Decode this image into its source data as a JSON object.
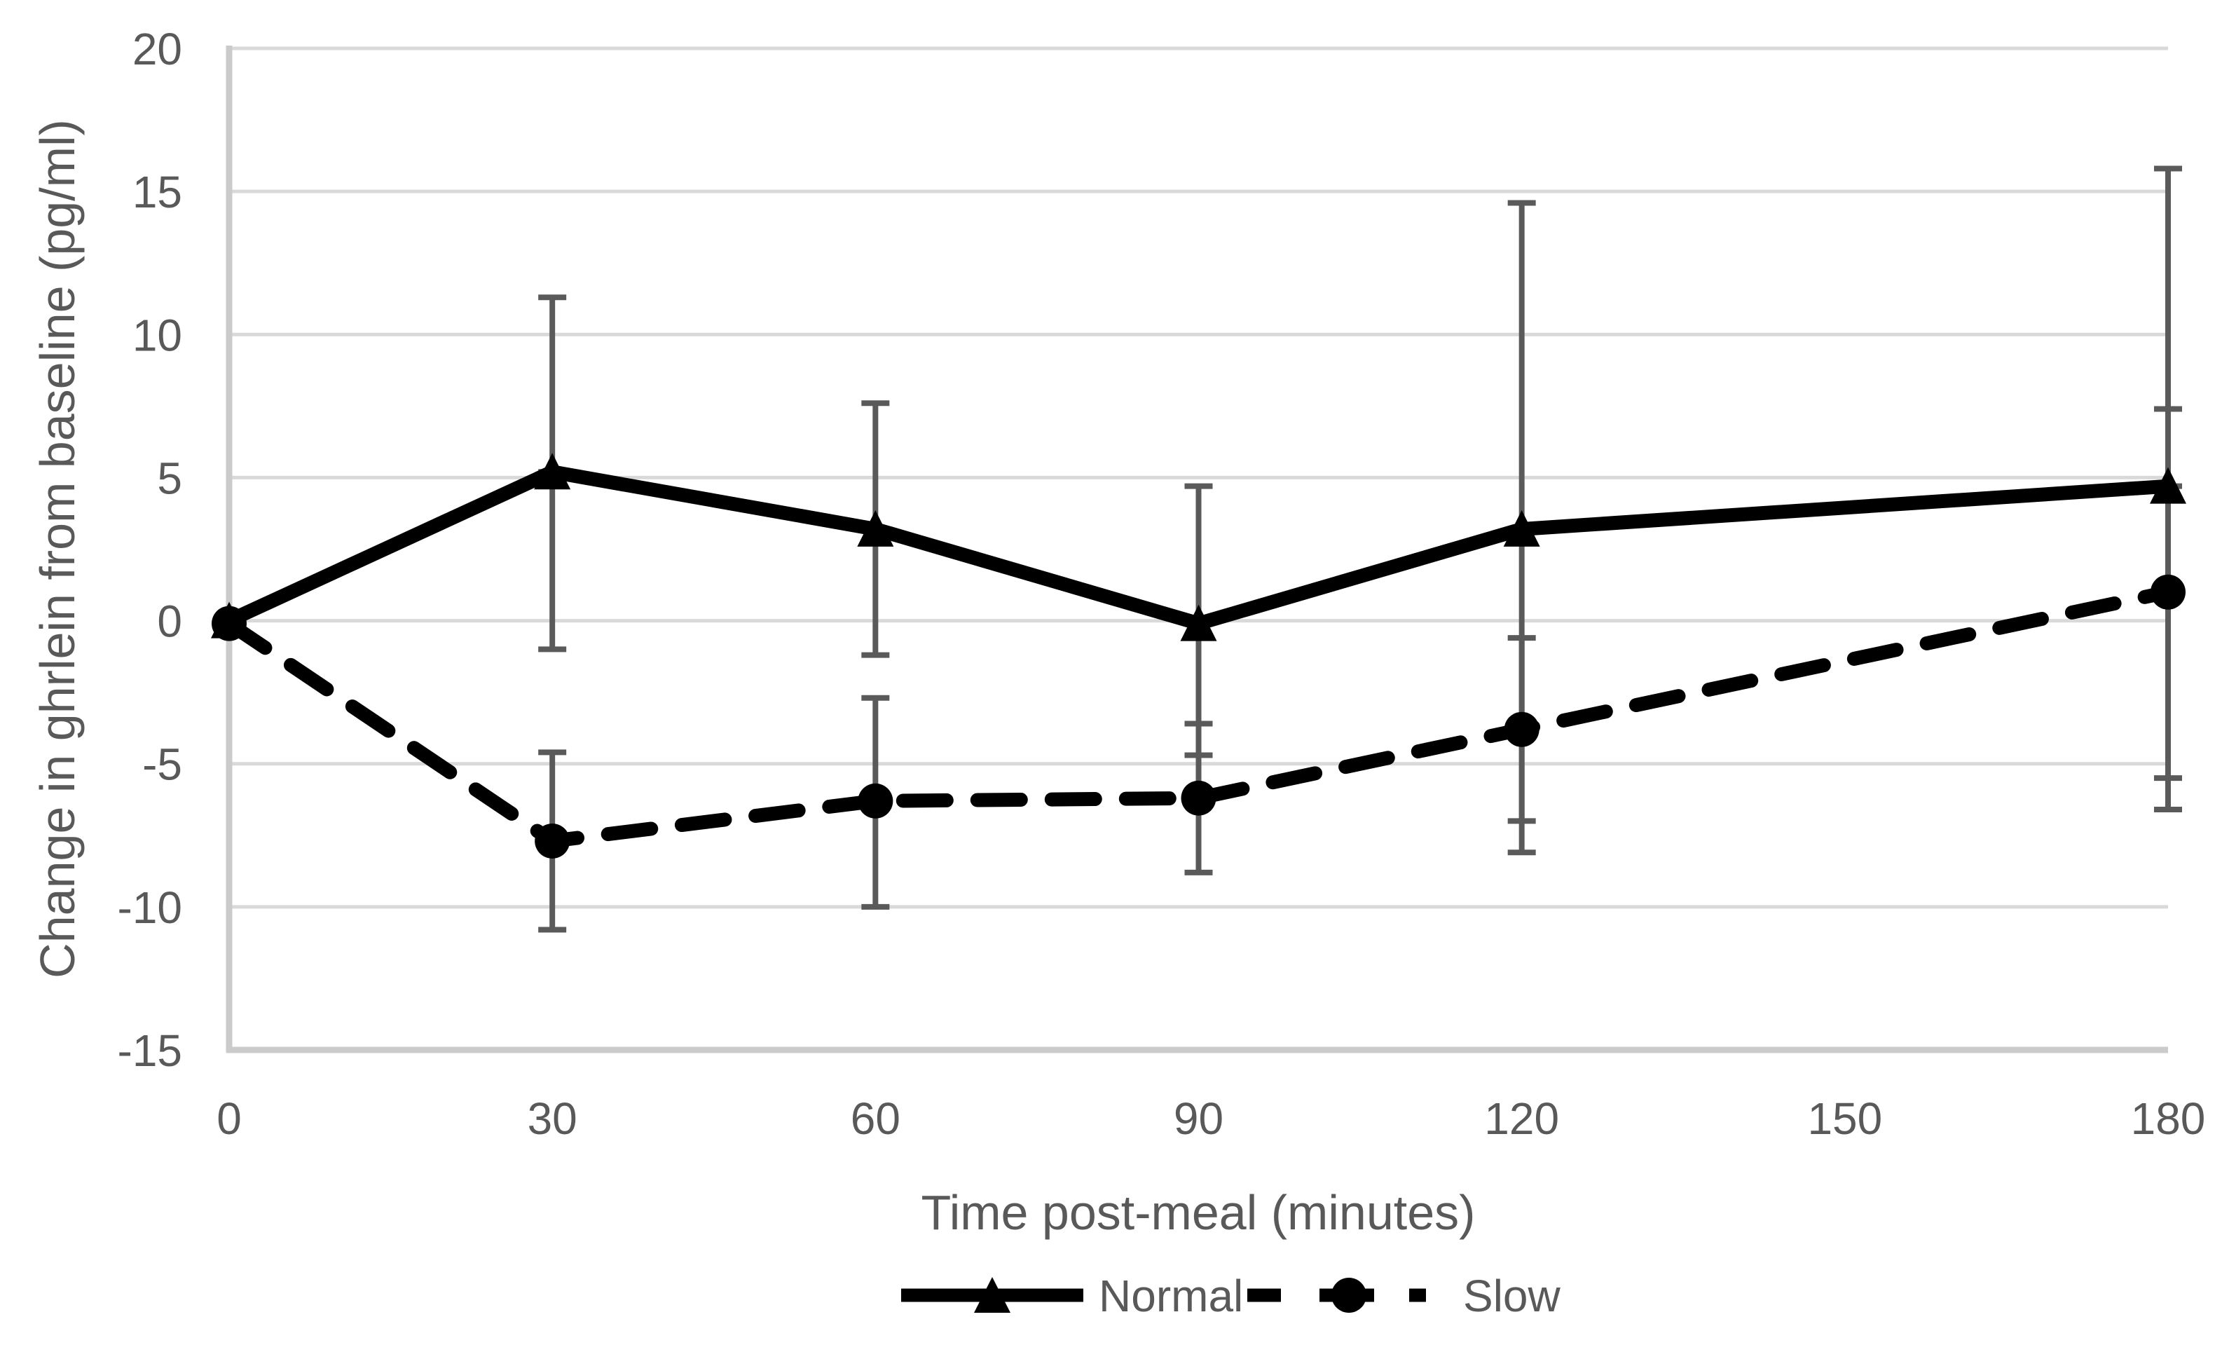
{
  "chart_data": {
    "type": "line",
    "title": "",
    "xlabel": "Time post-meal (minutes)",
    "ylabel": "Change in ghrlein from baseline (pg/ml)",
    "x_categories": [
      0,
      30,
      60,
      90,
      120,
      150,
      180
    ],
    "x_tick_labels": [
      "0",
      "30",
      "60",
      "90",
      "120",
      "150",
      "180"
    ],
    "ylim": [
      -15,
      20
    ],
    "ytick_step": 5,
    "y_tick_labels": [
      "20",
      "15",
      "10",
      "5",
      "0",
      "-5",
      "-10",
      "-15"
    ],
    "y_tick_values": [
      20,
      15,
      10,
      5,
      0,
      -5,
      -10,
      -15
    ],
    "grid": true,
    "legend_position": "bottom",
    "series": [
      {
        "name": "Normal",
        "line_style": "solid",
        "marker": "triangle",
        "points": [
          {
            "x": 0,
            "y": 0.0
          },
          {
            "x": 30,
            "y": 5.2,
            "err_lo": -1.0,
            "err_hi": 11.3
          },
          {
            "x": 60,
            "y": 3.2,
            "err_lo": -1.2,
            "err_hi": 7.6
          },
          {
            "x": 90,
            "y": -0.1,
            "err_lo": -4.7,
            "err_hi": 4.7
          },
          {
            "x": 120,
            "y": 3.2,
            "err_lo": -8.1,
            "err_hi": 14.6
          },
          {
            "x": 180,
            "y": 4.7,
            "err_lo": -6.6,
            "err_hi": 15.8
          }
        ]
      },
      {
        "name": "Slow",
        "line_style": "dashed",
        "marker": "circle",
        "points": [
          {
            "x": 0,
            "y": -0.1
          },
          {
            "x": 30,
            "y": -7.7,
            "err_lo": -10.8,
            "err_hi": -4.6
          },
          {
            "x": 60,
            "y": -6.3,
            "err_lo": -10.0,
            "err_hi": -2.7
          },
          {
            "x": 90,
            "y": -6.2,
            "err_lo": -8.8,
            "err_hi": -3.6
          },
          {
            "x": 120,
            "y": -3.8,
            "err_lo": -7.0,
            "err_hi": -0.6
          },
          {
            "x": 180,
            "y": 1.0,
            "err_lo": -5.5,
            "err_hi": 7.4
          }
        ]
      }
    ],
    "colors": {
      "series_line": "#000000",
      "error_bar": "#5a5a5a",
      "gridline": "#d9d9d9",
      "axis_line": "#cbcbcb",
      "text": "#595959",
      "background": "#ffffff"
    }
  }
}
